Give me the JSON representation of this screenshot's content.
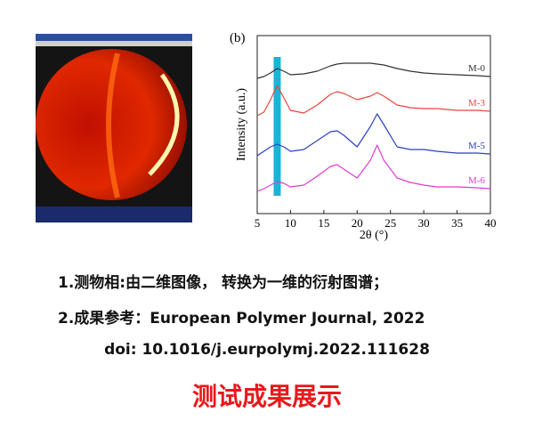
{
  "chart_data": {
    "type": "line",
    "panel_label": "(b)",
    "xlabel": "2θ (°)",
    "ylabel": "Intensity (a.u.)",
    "x": [
      5,
      6,
      7,
      8,
      9,
      10,
      12,
      14,
      16,
      17,
      18,
      20,
      22,
      23,
      24,
      26,
      28,
      30,
      32,
      35,
      38,
      40
    ],
    "xlim": [
      5,
      40
    ],
    "xticks": [
      5,
      10,
      15,
      20,
      25,
      30,
      35,
      40
    ],
    "ylim": [
      0,
      10
    ],
    "highlight": {
      "x": 8,
      "color": "#19b4d9"
    },
    "series": [
      {
        "name": "M-0",
        "color": "#333333",
        "values": [
          7.6,
          7.7,
          7.9,
          8.15,
          8.0,
          7.8,
          7.85,
          8.0,
          8.3,
          8.4,
          8.45,
          8.45,
          8.45,
          8.4,
          8.35,
          8.15,
          8.0,
          7.9,
          7.85,
          7.8,
          7.75,
          7.7
        ]
      },
      {
        "name": "M-3",
        "color": "#e8453c",
        "values": [
          5.5,
          5.7,
          6.4,
          7.2,
          6.5,
          5.8,
          5.65,
          6.1,
          6.7,
          6.85,
          6.75,
          6.4,
          6.6,
          6.8,
          6.6,
          6.1,
          5.95,
          5.9,
          5.9,
          5.8,
          5.8,
          5.75
        ]
      },
      {
        "name": "M-5",
        "color": "#2a3fc4",
        "values": [
          3.25,
          3.5,
          3.75,
          3.9,
          3.75,
          3.5,
          3.6,
          4.1,
          4.6,
          4.65,
          4.4,
          3.75,
          4.9,
          5.6,
          5.0,
          3.75,
          3.6,
          3.6,
          3.5,
          3.4,
          3.4,
          3.35
        ]
      },
      {
        "name": "M-6",
        "color": "#e23ad0",
        "values": [
          1.25,
          1.4,
          1.6,
          1.8,
          1.7,
          1.5,
          1.6,
          2.1,
          2.65,
          2.75,
          2.5,
          2.0,
          3.0,
          3.85,
          3.0,
          2.0,
          1.75,
          1.6,
          1.5,
          1.5,
          1.45,
          1.4
        ]
      }
    ]
  },
  "text": {
    "line1": "1.测物相:由二维图像， 转换为一维的衍射图谱；",
    "line2": "2.成果参考：European Polymer Journal, 2022",
    "line3": "doi: 10.1016/j.eurpolymj.2022.111628",
    "heading": "测试成果展示"
  }
}
